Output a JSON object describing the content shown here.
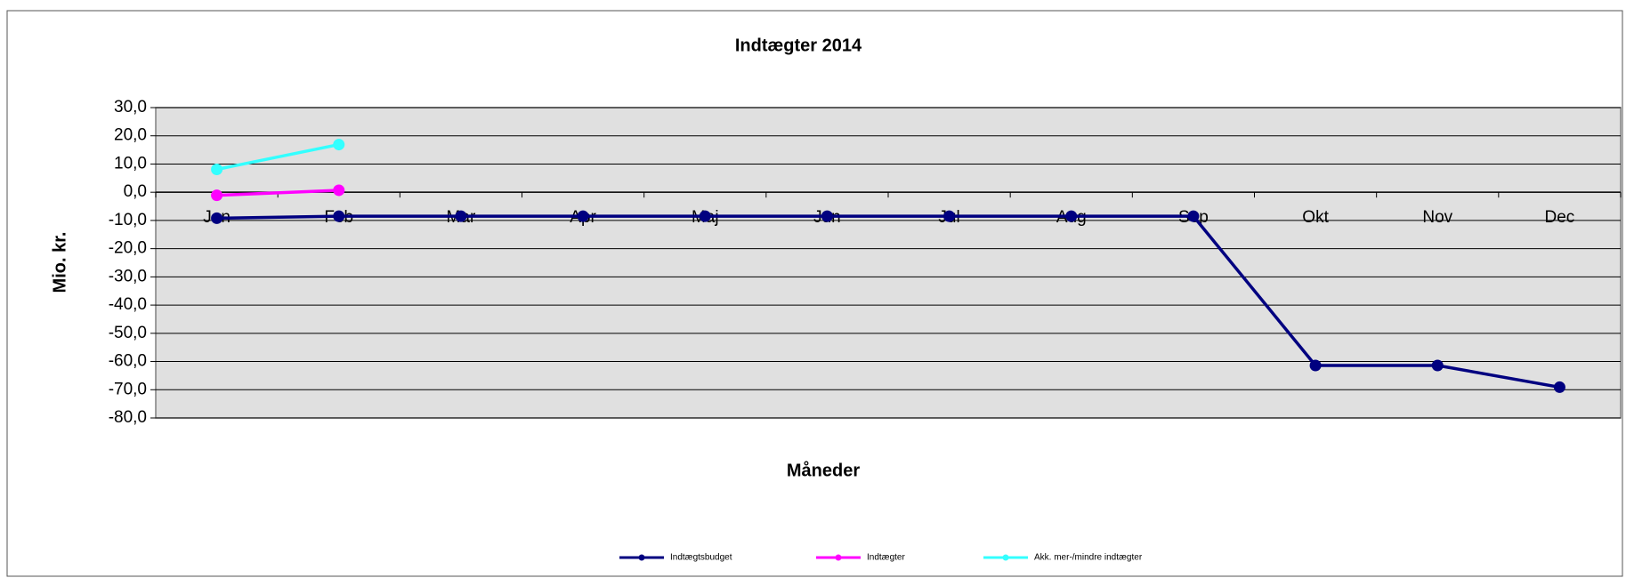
{
  "chart_data": {
    "type": "line",
    "title": "Indtægter 2014",
    "x_label": "Måneder",
    "y_label": "Mio. kr.",
    "categories": [
      "Jan",
      "Feb",
      "Mar",
      "Apr",
      "Maj",
      "Jun",
      "Jul",
      "Aug",
      "Sep",
      "Okt",
      "Nov",
      "Dec"
    ],
    "series": [
      {
        "name": "Indtægtsbudget",
        "color": "#000080",
        "values": [
          -9.2,
          -8.5,
          -8.5,
          -8.5,
          -8.5,
          -8.5,
          -8.5,
          -8.5,
          -8.5,
          -61.4,
          -61.4,
          -69.1
        ]
      },
      {
        "name": "Indtægter",
        "color": "#ff00ff",
        "values": [
          -1.1,
          0.7,
          null,
          null,
          null,
          null,
          null,
          null,
          null,
          null,
          null,
          null
        ]
      },
      {
        "name": "Akk. mer-/mindre indtægter",
        "color": "#33ffff",
        "values": [
          8.1,
          16.9,
          null,
          null,
          null,
          null,
          null,
          null,
          null,
          null,
          null,
          null
        ]
      }
    ],
    "ylim": [
      -80,
      30
    ],
    "yticks": [
      {
        "value": -80,
        "label": "-80,0"
      },
      {
        "value": -70,
        "label": "-70,0"
      },
      {
        "value": -60,
        "label": "-60,0"
      },
      {
        "value": -50,
        "label": "-50,0"
      },
      {
        "value": -40,
        "label": "-40,0"
      },
      {
        "value": -30,
        "label": "-30,0"
      },
      {
        "value": -20,
        "label": "-20,0"
      },
      {
        "value": -10,
        "label": "-10,0"
      },
      {
        "value": 0,
        "label": "0,0"
      },
      {
        "value": 10,
        "label": "10,0"
      },
      {
        "value": 20,
        "label": "20,0"
      },
      {
        "value": 30,
        "label": "30,0"
      }
    ],
    "grid": true,
    "legend": "bottom"
  }
}
